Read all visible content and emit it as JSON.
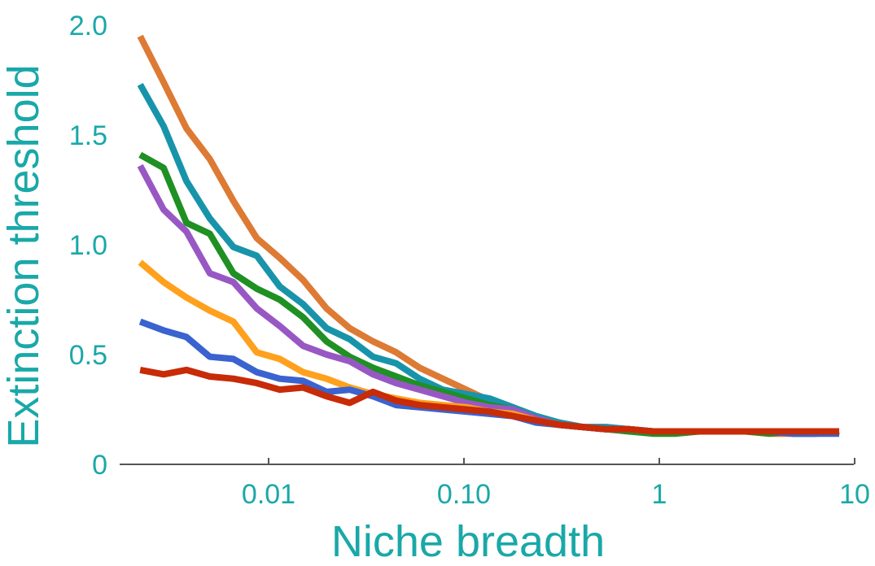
{
  "chart_data": {
    "type": "line",
    "xlabel": "Niche breadth",
    "ylabel": "Extinction threshold",
    "x_scale": "log",
    "xlim": [
      0.0017,
      9.5
    ],
    "ylim": [
      0,
      2.0
    ],
    "x_ticks": [
      {
        "value": 0.01,
        "label": "0.01"
      },
      {
        "value": 0.1,
        "label": "0.10"
      },
      {
        "value": 1,
        "label": "1"
      },
      {
        "value": 10,
        "label": "10"
      }
    ],
    "y_ticks": [
      {
        "value": 0,
        "label": "0"
      },
      {
        "value": 0.5,
        "label": "0.5"
      },
      {
        "value": 1.0,
        "label": "1.0"
      },
      {
        "value": 1.5,
        "label": "1.5"
      },
      {
        "value": 2.0,
        "label": "2.0"
      }
    ],
    "grid": false,
    "legend": "none",
    "colors": {
      "axis_text": "#1aa8a8",
      "axis_line": "#555555"
    },
    "x": [
      0.0022,
      0.0029,
      0.0038,
      0.005,
      0.0066,
      0.0087,
      0.0114,
      0.015,
      0.0198,
      0.026,
      0.0342,
      0.045,
      0.0593,
      0.078,
      0.1027,
      0.1351,
      0.1778,
      0.234,
      0.308,
      0.4054,
      0.5336,
      0.7023,
      0.9244,
      1.2167,
      1.6013,
      2.1077,
      2.7742,
      3.6514,
      4.806,
      6.325,
      8.33
    ],
    "series": [
      {
        "color": "#dd7a34",
        "values": [
          1.95,
          1.74,
          1.53,
          1.39,
          1.2,
          1.03,
          0.94,
          0.84,
          0.71,
          0.62,
          0.56,
          0.51,
          0.44,
          0.39,
          0.34,
          0.29,
          0.26,
          0.2,
          0.18,
          0.17,
          0.16,
          0.16,
          0.15,
          0.15,
          0.15,
          0.15,
          0.15,
          0.14,
          0.14,
          0.14,
          0.15
        ]
      },
      {
        "color": "#1894aa",
        "values": [
          1.73,
          1.54,
          1.29,
          1.12,
          0.99,
          0.95,
          0.81,
          0.73,
          0.62,
          0.57,
          0.49,
          0.46,
          0.39,
          0.34,
          0.32,
          0.3,
          0.26,
          0.22,
          0.19,
          0.17,
          0.17,
          0.16,
          0.15,
          0.15,
          0.15,
          0.15,
          0.15,
          0.15,
          0.14,
          0.14,
          0.15
        ]
      },
      {
        "color": "#1f9023",
        "values": [
          1.41,
          1.35,
          1.1,
          1.05,
          0.87,
          0.8,
          0.75,
          0.67,
          0.56,
          0.49,
          0.44,
          0.4,
          0.36,
          0.33,
          0.3,
          0.27,
          0.25,
          0.21,
          0.18,
          0.17,
          0.16,
          0.15,
          0.14,
          0.14,
          0.15,
          0.15,
          0.15,
          0.14,
          0.15,
          0.14,
          0.15
        ]
      },
      {
        "color": "#9858c4",
        "values": [
          1.36,
          1.16,
          1.06,
          0.87,
          0.83,
          0.71,
          0.63,
          0.54,
          0.5,
          0.47,
          0.41,
          0.37,
          0.34,
          0.31,
          0.28,
          0.26,
          0.25,
          0.21,
          0.18,
          0.17,
          0.16,
          0.16,
          0.15,
          0.15,
          0.15,
          0.15,
          0.15,
          0.15,
          0.15,
          0.15,
          0.15
        ]
      },
      {
        "color": "#ffa11c",
        "values": [
          0.92,
          0.83,
          0.76,
          0.7,
          0.65,
          0.51,
          0.48,
          0.42,
          0.39,
          0.35,
          0.32,
          0.3,
          0.28,
          0.27,
          0.26,
          0.24,
          0.23,
          0.2,
          0.18,
          0.17,
          0.16,
          0.16,
          0.15,
          0.15,
          0.15,
          0.15,
          0.15,
          0.15,
          0.15,
          0.15,
          0.15
        ]
      },
      {
        "color": "#3a63cf",
        "values": [
          0.65,
          0.61,
          0.58,
          0.49,
          0.48,
          0.42,
          0.39,
          0.38,
          0.33,
          0.34,
          0.31,
          0.27,
          0.26,
          0.25,
          0.24,
          0.23,
          0.22,
          0.19,
          0.18,
          0.17,
          0.16,
          0.16,
          0.15,
          0.15,
          0.15,
          0.15,
          0.15,
          0.15,
          0.14,
          0.14,
          0.14
        ]
      },
      {
        "color": "#c82b07",
        "values": [
          0.43,
          0.41,
          0.43,
          0.4,
          0.39,
          0.37,
          0.34,
          0.35,
          0.31,
          0.28,
          0.33,
          0.29,
          0.27,
          0.26,
          0.25,
          0.24,
          0.22,
          0.2,
          0.18,
          0.17,
          0.16,
          0.16,
          0.15,
          0.15,
          0.15,
          0.15,
          0.15,
          0.15,
          0.15,
          0.15,
          0.15
        ]
      }
    ]
  }
}
